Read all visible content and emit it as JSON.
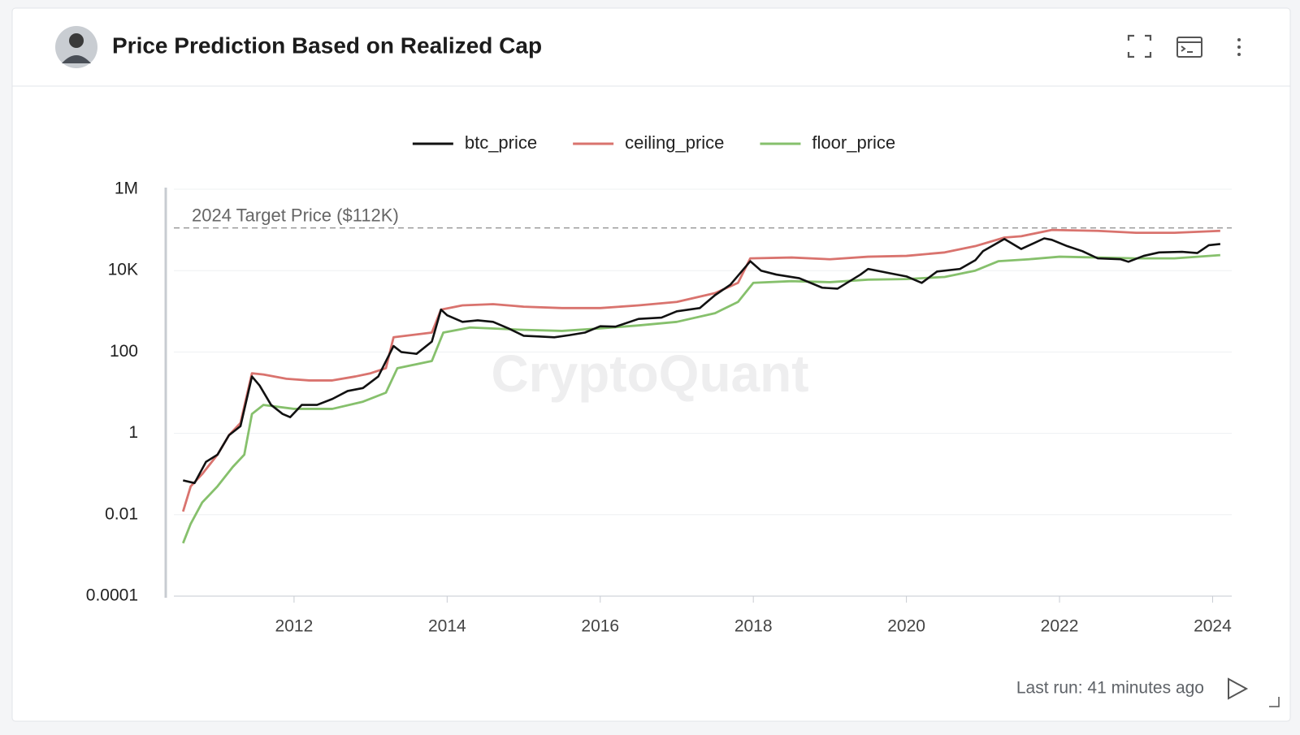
{
  "header": {
    "title": "Price Prediction Based on Realized Cap"
  },
  "footer": {
    "last_run": "Last run: 41 minutes ago"
  },
  "chart_data": {
    "type": "line",
    "watermark": "CryptoQuant",
    "log_scale": true,
    "grid": true,
    "legend": "top",
    "xlim": [
      2010.43,
      2024.25
    ],
    "xticks": [
      2012,
      2014,
      2016,
      2018,
      2020,
      2022,
      2024
    ],
    "ylim": [
      0.0001,
      1000000
    ],
    "yticks": [
      0.0001,
      0.01,
      1,
      100,
      {
        "value": 10000,
        "label": "10K"
      },
      {
        "value": 1000000,
        "label": "1M"
      }
    ],
    "reference_line": {
      "value": 112000,
      "label": "2024 Target Price ($112K)"
    },
    "series": [
      {
        "name": "btc_price",
        "color": "#111111",
        "x": [
          2010.55,
          2010.7,
          2010.85,
          2011.0,
          2011.15,
          2011.3,
          2011.45,
          2011.55,
          2011.7,
          2011.85,
          2011.95,
          2012.1,
          2012.3,
          2012.5,
          2012.7,
          2012.9,
          2013.1,
          2013.3,
          2013.4,
          2013.6,
          2013.8,
          2013.92,
          2014.0,
          2014.2,
          2014.4,
          2014.6,
          2014.8,
          2015.0,
          2015.2,
          2015.4,
          2015.6,
          2015.8,
          2016.0,
          2016.2,
          2016.5,
          2016.8,
          2017.0,
          2017.3,
          2017.5,
          2017.7,
          2017.96,
          2018.1,
          2018.3,
          2018.6,
          2018.9,
          2019.1,
          2019.4,
          2019.5,
          2019.8,
          2020.0,
          2020.2,
          2020.4,
          2020.7,
          2020.9,
          2021.0,
          2021.28,
          2021.5,
          2021.8,
          2021.9,
          2022.1,
          2022.3,
          2022.5,
          2022.8,
          2022.9,
          2023.1,
          2023.3,
          2023.6,
          2023.8,
          2023.95,
          2024.1
        ],
        "values": [
          0.07,
          0.06,
          0.2,
          0.3,
          0.9,
          1.5,
          25,
          15,
          5,
          3,
          2.5,
          5,
          5,
          7,
          11,
          13,
          25,
          140,
          100,
          90,
          180,
          1100,
          800,
          550,
          600,
          550,
          380,
          250,
          240,
          230,
          260,
          300,
          430,
          420,
          650,
          700,
          1000,
          1200,
          2500,
          4500,
          17000,
          10000,
          8000,
          6500,
          3800,
          3600,
          8000,
          11000,
          8500,
          7200,
          5000,
          9500,
          11000,
          18000,
          30000,
          60000,
          34000,
          62000,
          57000,
          40000,
          30000,
          20000,
          19000,
          16500,
          23000,
          28000,
          29000,
          27000,
          42000,
          45000
        ]
      },
      {
        "name": "ceiling_price",
        "color": "#d9736e",
        "x": [
          2010.55,
          2010.65,
          2010.8,
          2011.0,
          2011.15,
          2011.3,
          2011.45,
          2011.6,
          2011.9,
          2012.2,
          2012.5,
          2012.8,
          2013.0,
          2013.2,
          2013.3,
          2013.8,
          2013.92,
          2014.2,
          2014.6,
          2015.0,
          2015.5,
          2016.0,
          2016.5,
          2017.0,
          2017.5,
          2017.8,
          2017.96,
          2018.5,
          2019.0,
          2019.5,
          2020.0,
          2020.5,
          2020.9,
          2021.28,
          2021.5,
          2021.9,
          2022.5,
          2023.0,
          2023.5,
          2024.1
        ],
        "values": [
          0.012,
          0.05,
          0.1,
          0.3,
          0.9,
          1.8,
          30,
          28,
          22,
          20,
          20,
          25,
          30,
          40,
          230,
          300,
          1100,
          1400,
          1500,
          1300,
          1200,
          1200,
          1400,
          1700,
          2800,
          5000,
          20000,
          21000,
          19000,
          22000,
          23000,
          28000,
          40000,
          65000,
          70000,
          100000,
          95000,
          85000,
          85000,
          95000
        ]
      },
      {
        "name": "floor_price",
        "color": "#86c06c",
        "x": [
          2010.55,
          2010.65,
          2010.8,
          2011.0,
          2011.2,
          2011.35,
          2011.45,
          2011.6,
          2012.0,
          2012.5,
          2012.9,
          2013.2,
          2013.35,
          2013.8,
          2013.95,
          2014.3,
          2015.0,
          2015.5,
          2016.0,
          2016.5,
          2017.0,
          2017.5,
          2017.8,
          2018.0,
          2018.5,
          2019.0,
          2019.5,
          2020.0,
          2020.5,
          2020.9,
          2021.2,
          2021.6,
          2022.0,
          2022.5,
          2023.0,
          2023.5,
          2024.1
        ],
        "values": [
          0.002,
          0.006,
          0.02,
          0.05,
          0.15,
          0.3,
          3,
          5,
          4,
          4,
          6,
          10,
          40,
          60,
          300,
          400,
          350,
          330,
          380,
          450,
          550,
          900,
          1700,
          5000,
          5500,
          5200,
          6000,
          6200,
          7000,
          10000,
          17000,
          19000,
          22000,
          21000,
          20000,
          20000,
          24000
        ]
      }
    ]
  }
}
